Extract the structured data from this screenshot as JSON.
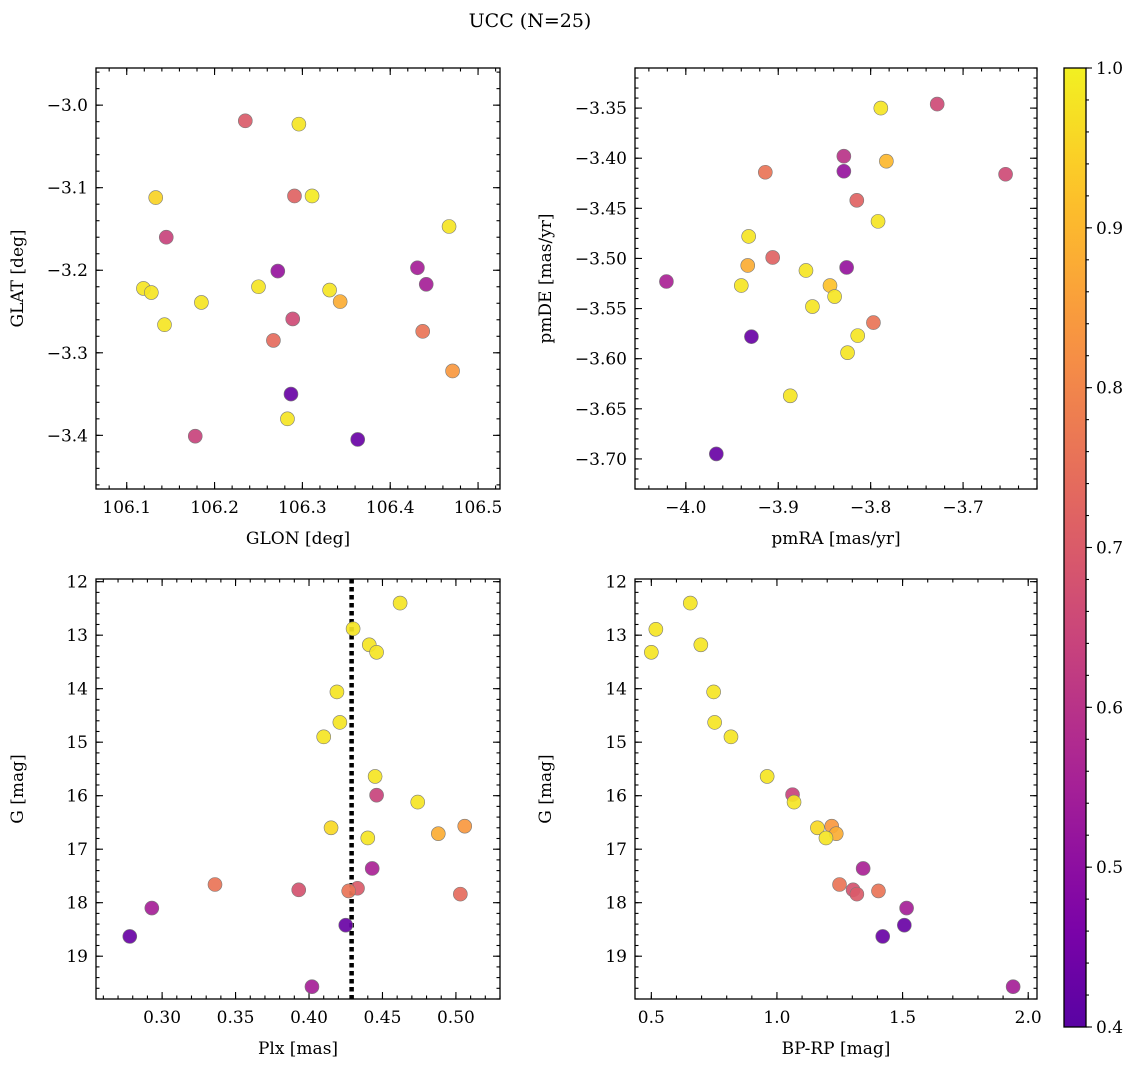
{
  "figure": {
    "title": "UCC (N=25)"
  },
  "colorbar": {
    "colormap": "plasma",
    "range": [
      0.4,
      1.0
    ],
    "ticks": [
      0.4,
      0.5,
      0.6,
      0.7,
      0.8,
      0.9,
      1.0
    ],
    "tick_labels": [
      "0.4",
      "0.5",
      "0.6",
      "0.7",
      "0.8",
      "0.9",
      "1.0"
    ]
  },
  "chart_data": [
    {
      "type": "scatter",
      "xlabel": "GLON [deg]",
      "ylabel": "GLAT [deg]",
      "xlim": [
        106.065,
        106.525
      ],
      "ylim": [
        -3.465,
        -2.955
      ],
      "xticks": [
        106.1,
        106.2,
        106.3,
        106.4,
        106.5
      ],
      "xtick_labels": [
        "106.1",
        "106.2",
        "106.3",
        "106.4",
        "106.5"
      ],
      "yticks": [
        -3.4,
        -3.3,
        -3.2,
        -3.1,
        -3.0
      ],
      "ytick_labels": [
        "−3.4",
        "−3.3",
        "−3.2",
        "−3.1",
        "−3.0"
      ],
      "inverted_y": false,
      "points": [
        {
          "x": 106.235,
          "y": -3.019,
          "c": 0.7
        },
        {
          "x": 106.296,
          "y": -3.023,
          "c": 0.98
        },
        {
          "x": 106.133,
          "y": -3.112,
          "c": 0.95
        },
        {
          "x": 106.291,
          "y": -3.11,
          "c": 0.72
        },
        {
          "x": 106.311,
          "y": -3.11,
          "c": 0.99
        },
        {
          "x": 106.145,
          "y": -3.16,
          "c": 0.64
        },
        {
          "x": 106.467,
          "y": -3.147,
          "c": 0.98
        },
        {
          "x": 106.272,
          "y": -3.201,
          "c": 0.52
        },
        {
          "x": 106.431,
          "y": -3.197,
          "c": 0.55
        },
        {
          "x": 106.119,
          "y": -3.222,
          "c": 0.98
        },
        {
          "x": 106.128,
          "y": -3.227,
          "c": 0.98
        },
        {
          "x": 106.25,
          "y": -3.22,
          "c": 0.98
        },
        {
          "x": 106.441,
          "y": -3.217,
          "c": 0.55
        },
        {
          "x": 106.331,
          "y": -3.224,
          "c": 0.98
        },
        {
          "x": 106.185,
          "y": -3.239,
          "c": 0.98
        },
        {
          "x": 106.343,
          "y": -3.238,
          "c": 0.88
        },
        {
          "x": 106.289,
          "y": -3.259,
          "c": 0.66
        },
        {
          "x": 106.143,
          "y": -3.266,
          "c": 0.98
        },
        {
          "x": 106.437,
          "y": -3.274,
          "c": 0.76
        },
        {
          "x": 106.267,
          "y": -3.285,
          "c": 0.74
        },
        {
          "x": 106.471,
          "y": -3.322,
          "c": 0.84
        },
        {
          "x": 106.287,
          "y": -3.35,
          "c": 0.43
        },
        {
          "x": 106.283,
          "y": -3.38,
          "c": 0.98
        },
        {
          "x": 106.178,
          "y": -3.401,
          "c": 0.64
        },
        {
          "x": 106.363,
          "y": -3.405,
          "c": 0.43
        }
      ]
    },
    {
      "type": "scatter",
      "xlabel": "pmRA [mas/yr]",
      "ylabel": "pmDE [mas/yr]",
      "xlim": [
        -4.055,
        -3.62
      ],
      "ylim": [
        -3.73,
        -3.31
      ],
      "xticks": [
        -4.0,
        -3.9,
        -3.8,
        -3.7
      ],
      "xtick_labels": [
        "−4.0",
        "−3.9",
        "−3.8",
        "−3.7"
      ],
      "yticks": [
        -3.7,
        -3.65,
        -3.6,
        -3.55,
        -3.5,
        -3.45,
        -3.4,
        -3.35
      ],
      "ytick_labels": [
        "−3.70",
        "−3.65",
        "−3.60",
        "−3.55",
        "−3.50",
        "−3.45",
        "−3.40",
        "−3.35"
      ],
      "inverted_y": false,
      "points": [
        {
          "x": -3.789,
          "y": -3.35,
          "c": 0.98
        },
        {
          "x": -3.728,
          "y": -3.346,
          "c": 0.66
        },
        {
          "x": -3.829,
          "y": -3.398,
          "c": 0.6
        },
        {
          "x": -3.783,
          "y": -3.403,
          "c": 0.9
        },
        {
          "x": -3.914,
          "y": -3.414,
          "c": 0.76
        },
        {
          "x": -3.829,
          "y": -3.413,
          "c": 0.52
        },
        {
          "x": -3.654,
          "y": -3.416,
          "c": 0.66
        },
        {
          "x": -3.815,
          "y": -3.442,
          "c": 0.72
        },
        {
          "x": -3.792,
          "y": -3.463,
          "c": 0.98
        },
        {
          "x": -3.932,
          "y": -3.478,
          "c": 0.98
        },
        {
          "x": -3.906,
          "y": -3.499,
          "c": 0.72
        },
        {
          "x": -3.933,
          "y": -3.507,
          "c": 0.88
        },
        {
          "x": -3.826,
          "y": -3.509,
          "c": 0.52
        },
        {
          "x": -3.87,
          "y": -3.512,
          "c": 0.98
        },
        {
          "x": -4.021,
          "y": -3.523,
          "c": 0.56
        },
        {
          "x": -3.94,
          "y": -3.527,
          "c": 0.98
        },
        {
          "x": -3.844,
          "y": -3.527,
          "c": 0.92
        },
        {
          "x": -3.839,
          "y": -3.538,
          "c": 0.98
        },
        {
          "x": -3.863,
          "y": -3.548,
          "c": 0.98
        },
        {
          "x": -3.797,
          "y": -3.564,
          "c": 0.76
        },
        {
          "x": -3.814,
          "y": -3.577,
          "c": 0.98
        },
        {
          "x": -3.929,
          "y": -3.578,
          "c": 0.43
        },
        {
          "x": -3.825,
          "y": -3.594,
          "c": 0.98
        },
        {
          "x": -3.887,
          "y": -3.637,
          "c": 0.98
        },
        {
          "x": -3.967,
          "y": -3.695,
          "c": 0.43
        }
      ]
    },
    {
      "type": "scatter",
      "xlabel": "Plx [mas]",
      "ylabel": "G [mag]",
      "xlim": [
        0.255,
        0.53
      ],
      "ylim": [
        19.8,
        11.95
      ],
      "xticks": [
        0.3,
        0.35,
        0.4,
        0.45,
        0.5
      ],
      "xtick_labels": [
        "0.30",
        "0.35",
        "0.40",
        "0.45",
        "0.50"
      ],
      "yticks": [
        12,
        13,
        14,
        15,
        16,
        17,
        18,
        19
      ],
      "ytick_labels": [
        "12",
        "13",
        "14",
        "15",
        "16",
        "17",
        "18",
        "19"
      ],
      "inverted_y": true,
      "vline": 0.429,
      "points": [
        {
          "x": 0.462,
          "y": 12.4,
          "c": 0.98
        },
        {
          "x": 0.43,
          "y": 12.88,
          "c": 0.98
        },
        {
          "x": 0.441,
          "y": 13.18,
          "c": 0.98
        },
        {
          "x": 0.446,
          "y": 13.32,
          "c": 0.98
        },
        {
          "x": 0.419,
          "y": 14.06,
          "c": 0.98
        },
        {
          "x": 0.421,
          "y": 14.63,
          "c": 0.98
        },
        {
          "x": 0.41,
          "y": 14.9,
          "c": 0.98
        },
        {
          "x": 0.445,
          "y": 15.64,
          "c": 0.98
        },
        {
          "x": 0.446,
          "y": 15.99,
          "c": 0.64
        },
        {
          "x": 0.474,
          "y": 16.12,
          "c": 0.98
        },
        {
          "x": 0.506,
          "y": 16.57,
          "c": 0.84
        },
        {
          "x": 0.415,
          "y": 16.6,
          "c": 0.96
        },
        {
          "x": 0.488,
          "y": 16.71,
          "c": 0.88
        },
        {
          "x": 0.44,
          "y": 16.79,
          "c": 0.98
        },
        {
          "x": 0.443,
          "y": 17.36,
          "c": 0.56
        },
        {
          "x": 0.336,
          "y": 17.66,
          "c": 0.76
        },
        {
          "x": 0.393,
          "y": 17.76,
          "c": 0.68
        },
        {
          "x": 0.433,
          "y": 17.73,
          "c": 0.7
        },
        {
          "x": 0.427,
          "y": 17.78,
          "c": 0.76
        },
        {
          "x": 0.503,
          "y": 17.84,
          "c": 0.74
        },
        {
          "x": 0.293,
          "y": 18.1,
          "c": 0.55
        },
        {
          "x": 0.278,
          "y": 18.63,
          "c": 0.43
        },
        {
          "x": 0.425,
          "y": 18.42,
          "c": 0.43
        },
        {
          "x": 0.402,
          "y": 19.57,
          "c": 0.55
        }
      ]
    },
    {
      "type": "scatter",
      "xlabel": "BP-RP [mag]",
      "ylabel": "G [mag]",
      "xlim": [
        0.435,
        2.035
      ],
      "ylim": [
        19.8,
        11.95
      ],
      "xticks": [
        0.5,
        1.0,
        1.5,
        2.0
      ],
      "xtick_labels": [
        "0.5",
        "1.0",
        "1.5",
        "2.0"
      ],
      "yticks": [
        12,
        13,
        14,
        15,
        16,
        17,
        18,
        19
      ],
      "ytick_labels": [
        "12",
        "13",
        "14",
        "15",
        "16",
        "17",
        "18",
        "19"
      ],
      "inverted_y": true,
      "points": [
        {
          "x": 0.655,
          "y": 12.4,
          "c": 0.98
        },
        {
          "x": 0.518,
          "y": 12.89,
          "c": 0.98
        },
        {
          "x": 0.5,
          "y": 13.32,
          "c": 0.98
        },
        {
          "x": 0.697,
          "y": 13.18,
          "c": 0.98
        },
        {
          "x": 0.748,
          "y": 14.06,
          "c": 0.98
        },
        {
          "x": 0.752,
          "y": 14.63,
          "c": 0.98
        },
        {
          "x": 0.817,
          "y": 14.9,
          "c": 0.98
        },
        {
          "x": 0.961,
          "y": 15.64,
          "c": 0.98
        },
        {
          "x": 1.062,
          "y": 15.98,
          "c": 0.64
        },
        {
          "x": 1.068,
          "y": 16.12,
          "c": 0.98
        },
        {
          "x": 1.161,
          "y": 16.6,
          "c": 0.96
        },
        {
          "x": 1.218,
          "y": 16.57,
          "c": 0.84
        },
        {
          "x": 1.236,
          "y": 16.71,
          "c": 0.88
        },
        {
          "x": 1.195,
          "y": 16.79,
          "c": 0.98
        },
        {
          "x": 1.343,
          "y": 17.36,
          "c": 0.56
        },
        {
          "x": 1.249,
          "y": 17.66,
          "c": 0.76
        },
        {
          "x": 1.303,
          "y": 17.76,
          "c": 0.68
        },
        {
          "x": 1.318,
          "y": 17.84,
          "c": 0.7
        },
        {
          "x": 1.404,
          "y": 17.78,
          "c": 0.76
        },
        {
          "x": 1.516,
          "y": 18.1,
          "c": 0.55
        },
        {
          "x": 1.507,
          "y": 18.42,
          "c": 0.43
        },
        {
          "x": 1.421,
          "y": 18.63,
          "c": 0.43
        },
        {
          "x": 1.94,
          "y": 19.57,
          "c": 0.55
        }
      ]
    }
  ]
}
